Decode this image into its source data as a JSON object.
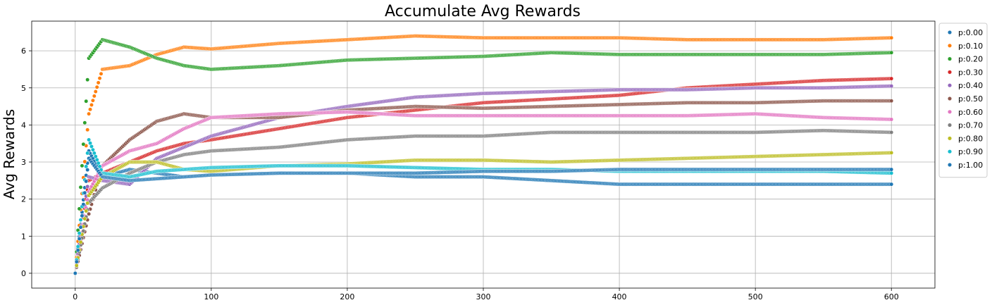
{
  "chart_data": {
    "type": "scatter",
    "title": "Accumulate Avg Rewards",
    "xlabel": "",
    "ylabel": "Avg Rewards",
    "xlim": [
      -32,
      632
    ],
    "ylim": [
      -0.4,
      6.8
    ],
    "xticks": [
      0,
      100,
      200,
      300,
      400,
      500,
      600
    ],
    "yticks": [
      0,
      1,
      2,
      3,
      4,
      5,
      6
    ],
    "grid": true,
    "legend_position": "outside-right-top",
    "series": [
      {
        "name": "p:0.00",
        "color": "#1f77b4",
        "x": [
          0,
          10,
          20,
          40,
          60,
          80,
          100,
          150,
          200,
          250,
          300,
          350,
          400,
          450,
          500,
          550,
          600
        ],
        "values": [
          0,
          3.3,
          2.6,
          2.8,
          2.7,
          2.6,
          2.65,
          2.7,
          2.7,
          2.6,
          2.6,
          2.5,
          2.4,
          2.4,
          2.4,
          2.4,
          2.4
        ]
      },
      {
        "name": "p:0.10",
        "color": "#ff7f0e",
        "x": [
          0,
          10,
          20,
          40,
          60,
          80,
          100,
          150,
          200,
          250,
          300,
          350,
          400,
          450,
          500,
          550,
          600
        ],
        "values": [
          0,
          4.3,
          5.5,
          5.6,
          5.9,
          6.1,
          6.05,
          6.2,
          6.3,
          6.4,
          6.35,
          6.35,
          6.35,
          6.3,
          6.3,
          6.3,
          6.35
        ]
      },
      {
        "name": "p:0.20",
        "color": "#2ca02c",
        "x": [
          0,
          10,
          20,
          40,
          60,
          80,
          100,
          150,
          200,
          250,
          300,
          350,
          400,
          450,
          500,
          550,
          600
        ],
        "values": [
          0,
          5.8,
          6.3,
          6.1,
          5.8,
          5.6,
          5.5,
          5.6,
          5.75,
          5.8,
          5.85,
          5.95,
          5.9,
          5.9,
          5.9,
          5.9,
          5.95
        ]
      },
      {
        "name": "p:0.30",
        "color": "#d62728",
        "x": [
          0,
          10,
          20,
          40,
          60,
          80,
          100,
          150,
          200,
          250,
          300,
          350,
          400,
          450,
          500,
          550,
          600
        ],
        "values": [
          0,
          2.5,
          2.7,
          3.0,
          3.3,
          3.5,
          3.6,
          3.9,
          4.2,
          4.4,
          4.6,
          4.7,
          4.8,
          5.0,
          5.1,
          5.2,
          5.25
        ]
      },
      {
        "name": "p:0.40",
        "color": "#9467bd",
        "x": [
          0,
          10,
          20,
          40,
          60,
          80,
          100,
          150,
          200,
          250,
          300,
          350,
          400,
          450,
          500,
          550,
          600
        ],
        "values": [
          0,
          2.6,
          2.5,
          2.4,
          3.1,
          3.4,
          3.7,
          4.2,
          4.5,
          4.75,
          4.85,
          4.9,
          4.95,
          4.95,
          5.0,
          5.0,
          5.05
        ]
      },
      {
        "name": "p:0.50",
        "color": "#8c564b",
        "x": [
          0,
          10,
          20,
          40,
          60,
          80,
          100,
          150,
          200,
          250,
          300,
          350,
          400,
          450,
          500,
          550,
          600
        ],
        "values": [
          0,
          1.6,
          2.9,
          3.6,
          4.1,
          4.3,
          4.2,
          4.2,
          4.4,
          4.5,
          4.45,
          4.5,
          4.55,
          4.6,
          4.6,
          4.65,
          4.65
        ]
      },
      {
        "name": "p:0.60",
        "color": "#e377c2",
        "x": [
          0,
          10,
          20,
          40,
          60,
          80,
          100,
          150,
          200,
          250,
          300,
          350,
          400,
          450,
          500,
          550,
          600
        ],
        "values": [
          0,
          2.2,
          2.9,
          3.3,
          3.5,
          3.9,
          4.2,
          4.3,
          4.35,
          4.25,
          4.25,
          4.25,
          4.25,
          4.25,
          4.3,
          4.2,
          4.15
        ]
      },
      {
        "name": "p:0.70",
        "color": "#7f7f7f",
        "x": [
          0,
          10,
          20,
          40,
          60,
          80,
          100,
          150,
          200,
          250,
          300,
          350,
          400,
          450,
          500,
          550,
          600
        ],
        "values": [
          0,
          1.9,
          2.3,
          2.7,
          3.0,
          3.2,
          3.3,
          3.4,
          3.6,
          3.7,
          3.7,
          3.8,
          3.8,
          3.8,
          3.8,
          3.85,
          3.8
        ]
      },
      {
        "name": "p:0.80",
        "color": "#bcbd22",
        "x": [
          0,
          10,
          20,
          40,
          60,
          80,
          100,
          150,
          200,
          250,
          300,
          350,
          400,
          450,
          500,
          550,
          600
        ],
        "values": [
          0,
          2.1,
          2.6,
          3.0,
          3.0,
          2.8,
          2.75,
          2.9,
          2.95,
          3.05,
          3.05,
          3.0,
          3.05,
          3.1,
          3.15,
          3.2,
          3.25
        ]
      },
      {
        "name": "p:0.90",
        "color": "#17becf",
        "x": [
          0,
          10,
          20,
          40,
          60,
          80,
          100,
          150,
          200,
          250,
          300,
          350,
          400,
          450,
          500,
          550,
          600
        ],
        "values": [
          0,
          3.6,
          2.7,
          2.6,
          2.75,
          2.8,
          2.85,
          2.9,
          2.9,
          2.85,
          2.8,
          2.8,
          2.75,
          2.75,
          2.75,
          2.75,
          2.7
        ]
      },
      {
        "name": "p:1.00",
        "color": "#1f77b4",
        "x": [
          0,
          10,
          20,
          40,
          60,
          80,
          100,
          150,
          200,
          250,
          300,
          350,
          400,
          450,
          500,
          550,
          600
        ],
        "values": [
          0,
          3.1,
          2.6,
          2.5,
          2.55,
          2.6,
          2.65,
          2.7,
          2.7,
          2.7,
          2.75,
          2.75,
          2.8,
          2.8,
          2.8,
          2.8,
          2.8
        ]
      }
    ]
  }
}
